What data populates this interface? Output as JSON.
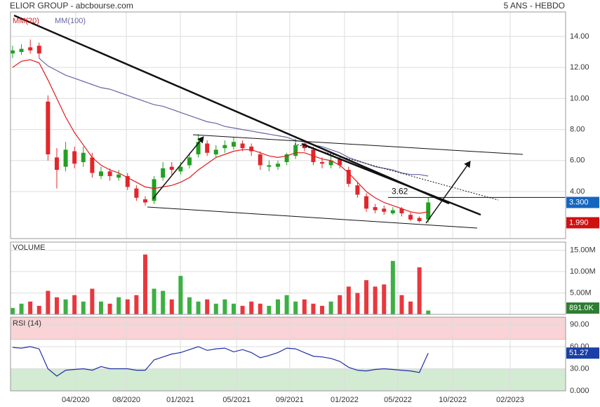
{
  "chart_data": [
    {
      "type": "candlestick",
      "title": "ELIOR GROUP - abcbourse.com",
      "subtitle": "5 ANS - HEBDO",
      "x": [
        0,
        3,
        6,
        9,
        12,
        15,
        18,
        21,
        24,
        27,
        30,
        33,
        36,
        39,
        42,
        45,
        48,
        51,
        54,
        57,
        60,
        63,
        66,
        69,
        72,
        75,
        78,
        81,
        84,
        87,
        90,
        93,
        96,
        99,
        102,
        105,
        108,
        111,
        114,
        117,
        120,
        123,
        126,
        129,
        132,
        135,
        138,
        141
      ],
      "open": [
        12.9,
        13.0,
        13.3,
        13.4,
        9.8,
        6.2,
        5.6,
        6.6,
        5.9,
        6.2,
        5.0,
        5.3,
        4.9,
        5.0,
        4.2,
        3.5,
        3.4,
        4.9,
        5.6,
        5.3,
        5.7,
        6.4,
        7.1,
        6.4,
        6.8,
        6.9,
        7.1,
        6.9,
        6.4,
        5.6,
        5.6,
        5.9,
        6.3,
        7.1,
        6.7,
        5.9,
        5.7,
        6.1,
        5.4,
        4.4,
        3.7,
        3.0,
        2.9,
        2.6,
        2.9,
        2.5,
        2.3,
        2.2
      ],
      "high": [
        13.4,
        13.5,
        13.8,
        13.6,
        10.2,
        6.8,
        7.2,
        6.9,
        6.9,
        6.5,
        5.6,
        5.5,
        5.4,
        5.2,
        4.4,
        3.7,
        5.0,
        5.9,
        5.9,
        5.9,
        6.5,
        7.7,
        7.3,
        7.0,
        7.3,
        7.5,
        7.3,
        7.1,
        6.6,
        6.0,
        6.0,
        6.5,
        7.4,
        7.3,
        6.9,
        6.2,
        6.3,
        6.3,
        5.6,
        4.6,
        3.9,
        3.2,
        3.1,
        3.0,
        3.0,
        2.7,
        2.4,
        3.6
      ],
      "low": [
        12.6,
        12.8,
        12.9,
        12.6,
        6.0,
        4.2,
        5.3,
        5.5,
        5.6,
        4.9,
        4.8,
        4.7,
        4.7,
        4.1,
        3.4,
        3.1,
        3.2,
        4.7,
        5.1,
        5.1,
        5.5,
        6.2,
        6.3,
        6.2,
        6.5,
        6.7,
        6.6,
        6.3,
        5.4,
        5.3,
        5.4,
        5.7,
        6.1,
        6.6,
        5.7,
        5.5,
        5.5,
        5.5,
        4.3,
        3.6,
        2.7,
        2.6,
        2.5,
        2.5,
        2.4,
        2.1,
        2.0,
        2.0
      ],
      "close": [
        13.1,
        13.2,
        13.1,
        12.9,
        6.4,
        5.4,
        6.7,
        5.8,
        6.5,
        5.2,
        5.3,
        5.0,
        5.1,
        4.3,
        3.6,
        3.3,
        4.8,
        5.5,
        5.4,
        5.6,
        6.2,
        7.2,
        6.5,
        6.7,
        7.0,
        7.2,
        6.8,
        6.6,
        5.7,
        5.7,
        5.8,
        6.4,
        7.0,
        6.8,
        5.9,
        5.8,
        6.0,
        5.7,
        4.5,
        3.8,
        2.9,
        2.8,
        2.7,
        2.8,
        2.6,
        2.2,
        2.1,
        3.3
      ],
      "up_color": "#22a022",
      "down_color": "#e3262b",
      "overlays": [
        {
          "name": "MM(20)",
          "color": "#e31a1c",
          "values": [
            12.0,
            12.4,
            12.5,
            12.3,
            11.2,
            10.0,
            8.8,
            7.8,
            7.0,
            6.2,
            5.7,
            5.4,
            5.2,
            4.9,
            4.6,
            4.3,
            4.2,
            4.3,
            4.4,
            4.6,
            4.9,
            5.4,
            5.8,
            6.2,
            6.4,
            6.6,
            6.7,
            6.7,
            6.5,
            6.3,
            6.2,
            6.3,
            6.5,
            6.5,
            6.3,
            6.1,
            6.0,
            5.7,
            5.2,
            4.6,
            4.0,
            3.6,
            3.3,
            3.1,
            2.9,
            2.7,
            2.6,
            2.7
          ]
        },
        {
          "name": "MM(100)",
          "color": "#6666a6",
          "values": [
            null,
            null,
            null,
            12.6,
            12.1,
            11.8,
            11.5,
            11.3,
            11.1,
            10.9,
            10.7,
            10.6,
            10.4,
            10.2,
            10.0,
            9.8,
            9.6,
            9.5,
            9.3,
            9.1,
            8.9,
            8.7,
            8.5,
            8.4,
            8.2,
            8.1,
            8.0,
            7.9,
            7.8,
            7.7,
            7.6,
            7.5,
            7.3,
            7.2,
            7.0,
            6.9,
            6.7,
            6.5,
            6.2,
            6.0,
            5.8,
            5.6,
            5.5,
            5.4,
            5.2,
            5.1,
            5.1,
            5.0
          ]
        }
      ],
      "ylim": [
        0.97,
        15.58
      ],
      "yticks": [
        {
          "value": 4,
          "label": "4.00"
        },
        {
          "value": 6,
          "label": "6.00"
        },
        {
          "value": 8,
          "label": "8.00"
        },
        {
          "value": 10,
          "label": "10.00"
        },
        {
          "value": 12,
          "label": "12.00"
        },
        {
          "value": 14,
          "label": "14.00"
        }
      ],
      "annotations": [
        {
          "value": 3.62
        }
      ],
      "markers": [
        {
          "value": 3.3,
          "label": "3.300",
          "color": "#1565c0"
        },
        {
          "value": 1.99,
          "label": "1.990",
          "color": "#d01010"
        }
      ]
    },
    {
      "type": "bar",
      "title": "VOLUME",
      "values": [
        1.5,
        2.5,
        3.0,
        2.0,
        5.5,
        4.0,
        3.5,
        4.5,
        3.0,
        6.0,
        3.0,
        2.5,
        4.0,
        3.5,
        4.5,
        14.0,
        6.0,
        5.5,
        3.5,
        9.0,
        4.0,
        3.0,
        3.5,
        2.5,
        3.5,
        2.5,
        2.0,
        3.0,
        2.5,
        2.0,
        3.5,
        4.5,
        3.0,
        3.5,
        2.5,
        2.0,
        3.0,
        4.5,
        6.5,
        5.0,
        8.0,
        6.5,
        7.0,
        12.5,
        4.5,
        3.0,
        11.0,
        0.891
      ],
      "up_color": "#3cb043",
      "down_color": "#e8383d",
      "ylim": [
        0,
        16.9
      ],
      "yticks": [
        {
          "value": 5,
          "label": "5.00M"
        },
        {
          "value": 10,
          "label": "10.00M"
        },
        {
          "value": 15,
          "label": "15.00M"
        }
      ],
      "markers": [
        {
          "value": 0.891,
          "label": "891.0K",
          "color": "#2e7d32"
        }
      ]
    },
    {
      "type": "line",
      "title": "RSI (14)",
      "color": "#1f2fa8",
      "values": [
        59,
        58,
        60,
        57,
        30,
        20,
        28,
        29,
        30,
        28,
        33,
        30,
        30,
        30,
        28,
        28,
        42,
        46,
        50,
        52,
        56,
        60,
        55,
        57,
        58,
        53,
        56,
        52,
        45,
        48,
        52,
        58,
        57,
        52,
        47,
        46,
        44,
        40,
        32,
        28,
        27,
        29,
        30,
        29,
        28,
        27,
        25,
        51.27
      ],
      "ylim": [
        0,
        100
      ],
      "yticks": [
        {
          "value": 0,
          "label": "0.000"
        },
        {
          "value": 30,
          "label": "30.00"
        },
        {
          "value": 60,
          "label": "60.00"
        },
        {
          "value": 90,
          "label": "90.00"
        }
      ],
      "bands": [
        {
          "from": 70,
          "to": 100,
          "color": "#f9d3d6"
        },
        {
          "from": 0,
          "to": 30,
          "color": "#d3ead3"
        }
      ],
      "markers": [
        {
          "value": 51.27,
          "color": "#1a3fa8"
        }
      ],
      "xlim": [
        -0.7,
        187.6
      ],
      "xticks": [
        {
          "value": 21.4,
          "label": "04/2020"
        },
        {
          "value": 38.6,
          "label": "08/2020"
        },
        {
          "value": 56.9,
          "label": "01/2021"
        },
        {
          "value": 76,
          "label": "05/2021"
        },
        {
          "value": 94,
          "label": "09/2021"
        },
        {
          "value": 112.6,
          "label": "01/2022"
        },
        {
          "value": 130.7,
          "label": "05/2022"
        },
        {
          "value": 149.3,
          "label": "10/2022"
        },
        {
          "value": 168.8,
          "label": "02/2023"
        }
      ]
    }
  ]
}
